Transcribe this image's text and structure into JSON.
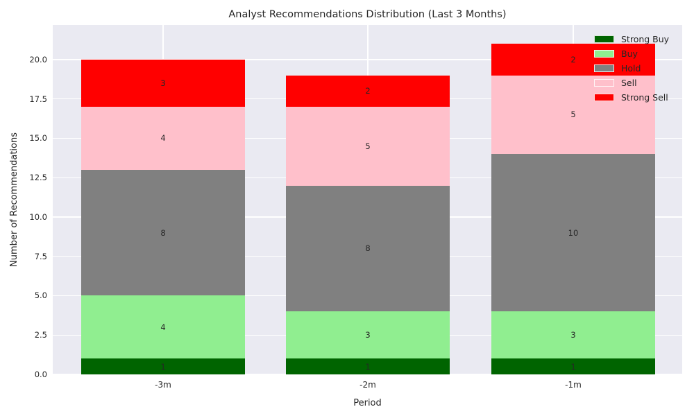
{
  "chart_data": {
    "type": "bar",
    "stacked": true,
    "title": "Analyst Recommendations Distribution (Last 3 Months)",
    "xlabel": "Period",
    "ylabel": "Number of Recommendations",
    "categories": [
      "-3m",
      "-2m",
      "-1m"
    ],
    "series": [
      {
        "name": "Strong Buy",
        "color": "#006400",
        "values": [
          1,
          1,
          1
        ]
      },
      {
        "name": "Buy",
        "color": "#90EE90",
        "values": [
          4,
          3,
          3
        ]
      },
      {
        "name": "Hold",
        "color": "#808080",
        "values": [
          8,
          8,
          10
        ]
      },
      {
        "name": "Sell",
        "color": "#FFC0CB",
        "values": [
          4,
          5,
          5
        ]
      },
      {
        "name": "Strong Sell",
        "color": "#FF0000",
        "values": [
          3,
          2,
          2
        ]
      }
    ],
    "totals": [
      20,
      19,
      21
    ],
    "bar_value_labels": true,
    "ytick_labels": [
      "0.0",
      "2.5",
      "5.0",
      "7.5",
      "10.0",
      "12.5",
      "15.0",
      "17.5",
      "20.0"
    ],
    "yticks": [
      0,
      2.5,
      5,
      7.5,
      10,
      12.5,
      15,
      17.5,
      20
    ],
    "ylim": [
      0,
      22.2
    ],
    "grid": true,
    "legend": {
      "position": "upper right",
      "entries": [
        "Strong Buy",
        "Buy",
        "Hold",
        "Sell",
        "Strong Sell"
      ]
    },
    "colors": {
      "plot_background": "#EAEAF2",
      "gridline": "#FFFFFF",
      "text": "#262626"
    }
  }
}
